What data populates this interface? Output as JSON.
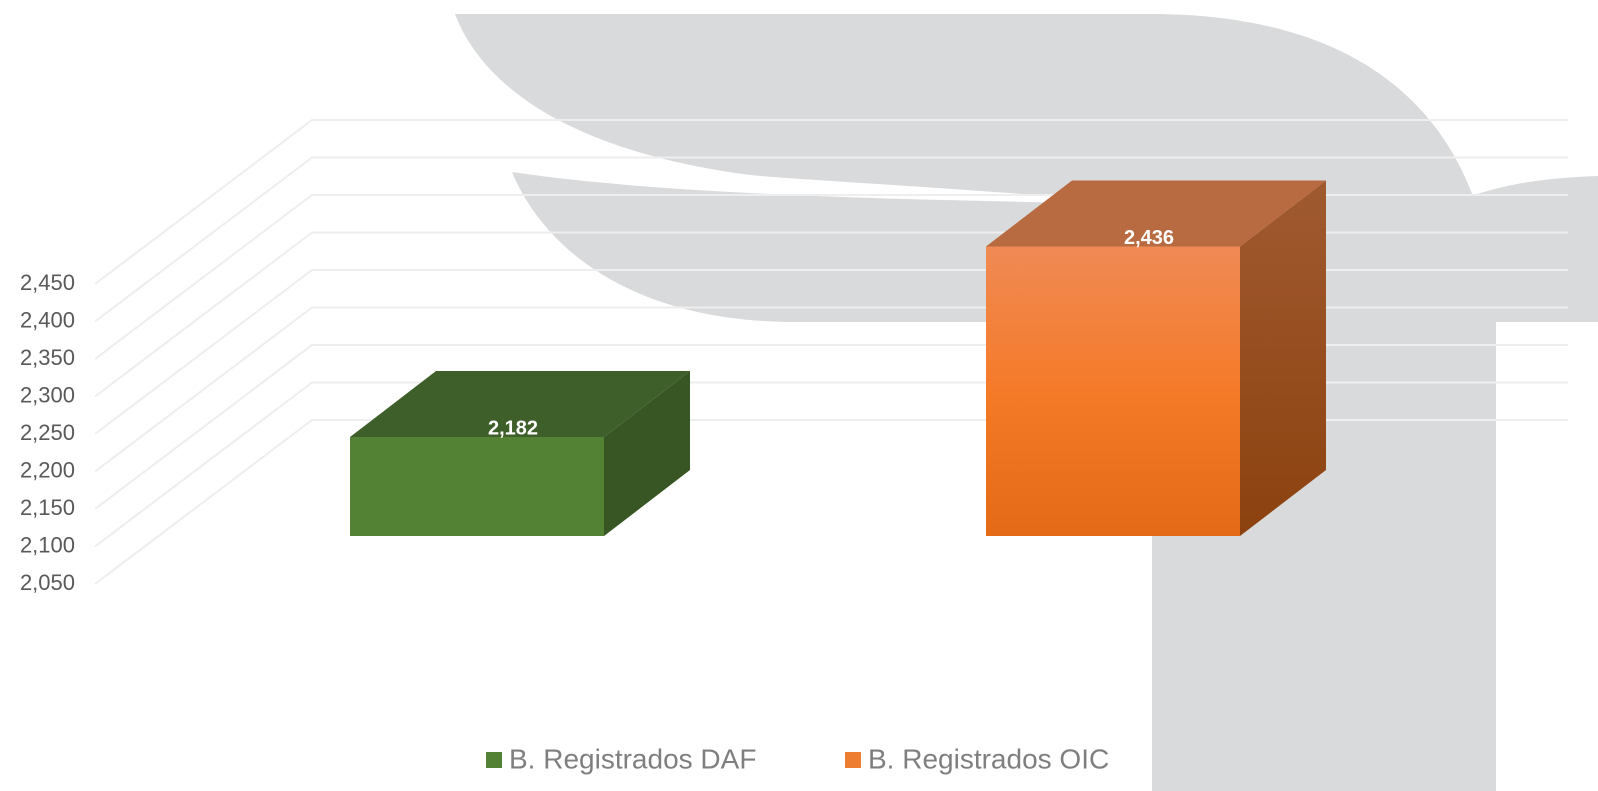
{
  "chart_data": {
    "type": "bar3d",
    "series": [
      {
        "name": "B. Registrados DAF",
        "color": "#548235",
        "values": [
          2182
        ],
        "value_labels": [
          "2,182"
        ]
      },
      {
        "name": "B. Registrados OIC",
        "color": "#ed7d31",
        "values": [
          2436
        ],
        "value_labels": [
          "2,436"
        ]
      }
    ],
    "ylim": [
      2050,
      2450
    ],
    "yticks": [
      {
        "value": 2050,
        "label": "2,050"
      },
      {
        "value": 2100,
        "label": "2,100"
      },
      {
        "value": 2150,
        "label": "2,150"
      },
      {
        "value": 2200,
        "label": "2,200"
      },
      {
        "value": 2250,
        "label": "2,250"
      },
      {
        "value": 2300,
        "label": "2,300"
      },
      {
        "value": 2350,
        "label": "2,350"
      },
      {
        "value": 2400,
        "label": "2,400"
      },
      {
        "value": 2450,
        "label": "2,450"
      }
    ],
    "grid": true,
    "legend": "bottom"
  }
}
